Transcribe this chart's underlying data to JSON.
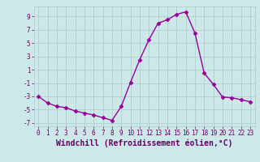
{
  "x": [
    0,
    1,
    2,
    3,
    4,
    5,
    6,
    7,
    8,
    9,
    10,
    11,
    12,
    13,
    14,
    15,
    16,
    17,
    18,
    19,
    20,
    21,
    22,
    23
  ],
  "y": [
    -3,
    -4,
    -4.5,
    -4.7,
    -5.2,
    -5.5,
    -5.8,
    -6.2,
    -6.6,
    -4.5,
    -0.9,
    2.5,
    5.5,
    8.0,
    8.5,
    9.3,
    9.7,
    6.5,
    0.5,
    -1.2,
    -3.1,
    -3.2,
    -3.5,
    -3.8
  ],
  "line_color": "#990099",
  "marker": "D",
  "markersize": 2.5,
  "bg_color": "#cce8e8",
  "grid_color": "#aacccc",
  "xlabel": "Windchill (Refroidissement éolien,°C)",
  "xlim": [
    -0.5,
    23.5
  ],
  "ylim": [
    -7.5,
    10.5
  ],
  "yticks": [
    -7,
    -5,
    -3,
    -1,
    1,
    3,
    5,
    7,
    9
  ],
  "xticks": [
    0,
    1,
    2,
    3,
    4,
    5,
    6,
    7,
    8,
    9,
    10,
    11,
    12,
    13,
    14,
    15,
    16,
    17,
    18,
    19,
    20,
    21,
    22,
    23
  ],
  "tick_color": "#660066",
  "label_color": "#660066",
  "xlabel_fontsize": 7,
  "tick_fontsize": 5.5,
  "linewidth": 1.0
}
